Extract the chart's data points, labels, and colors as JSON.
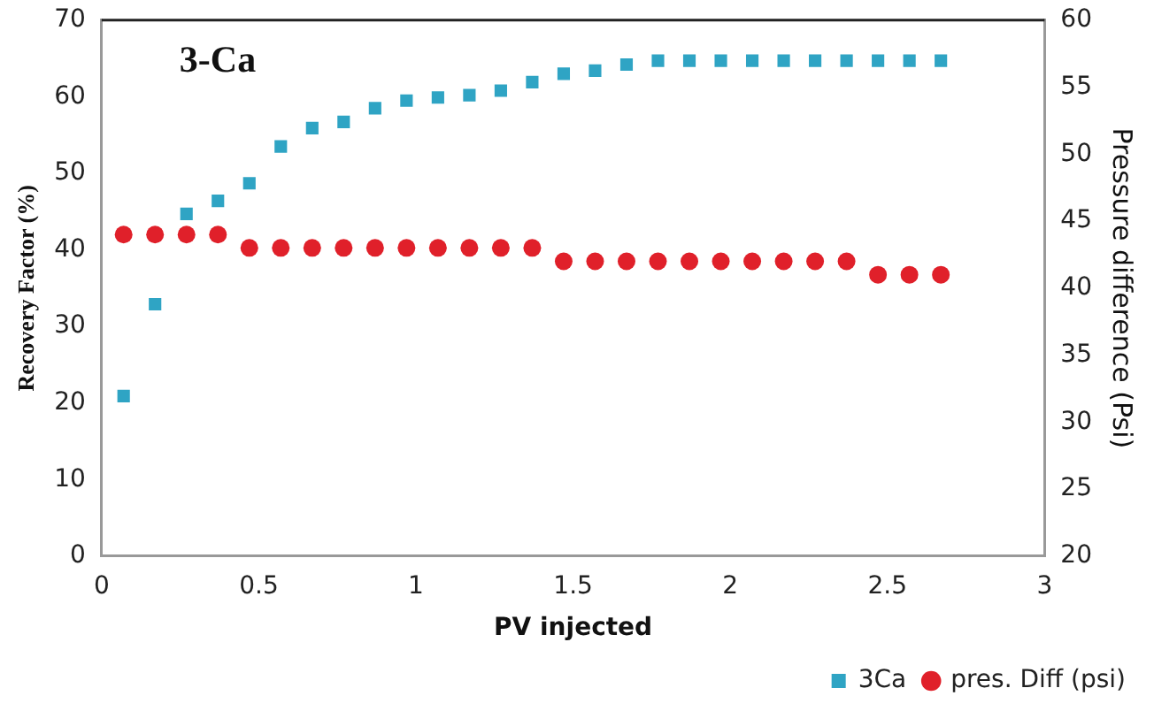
{
  "chart_data": {
    "type": "scatter",
    "title": "3-Ca",
    "xlabel": "PV injected",
    "ylabel": "Recovery Factor (%)",
    "y2label": "Pressure difference (Psi)",
    "x": [
      0.07,
      0.17,
      0.27,
      0.37,
      0.47,
      0.57,
      0.67,
      0.77,
      0.87,
      0.97,
      1.07,
      1.17,
      1.27,
      1.37,
      1.47,
      1.57,
      1.67,
      1.77,
      1.87,
      1.97,
      2.07,
      2.17,
      2.27,
      2.37,
      2.47,
      2.57,
      2.67
    ],
    "series": [
      {
        "name": "3Ca",
        "color": "#2fa4c4",
        "marker": "square",
        "values": [
          20.9,
          32.9,
          44.7,
          46.4,
          48.7,
          53.5,
          55.9,
          56.7,
          58.5,
          59.5,
          59.9,
          60.2,
          60.8,
          61.9,
          63.0,
          63.4,
          64.2,
          64.7,
          64.7,
          64.7,
          64.7,
          64.7,
          64.7,
          64.7,
          64.7,
          64.7,
          64.7
        ]
      },
      {
        "name": "pres. Diff (psi)",
        "color": "#e0202a",
        "marker": "circle",
        "axis": "y2",
        "values": [
          44.0,
          44.0,
          44.0,
          44.0,
          43.0,
          43.0,
          43.0,
          43.0,
          43.0,
          43.0,
          43.0,
          43.0,
          43.0,
          43.0,
          42.0,
          42.0,
          42.0,
          42.0,
          42.0,
          42.0,
          42.0,
          42.0,
          42.0,
          42.0,
          41.0,
          41.0,
          41.0
        ]
      }
    ],
    "xlim": [
      0,
      3
    ],
    "xticks": [
      0,
      0.5,
      1,
      1.5,
      2,
      2.5,
      3
    ],
    "ylim": [
      0,
      70
    ],
    "yticks": [
      0,
      10,
      20,
      30,
      40,
      50,
      60,
      70
    ],
    "y2lim": [
      20,
      60
    ],
    "y2ticks": [
      20,
      25,
      30,
      35,
      40,
      45,
      50,
      55,
      60
    ],
    "grid": false,
    "legend": "bottom right"
  }
}
